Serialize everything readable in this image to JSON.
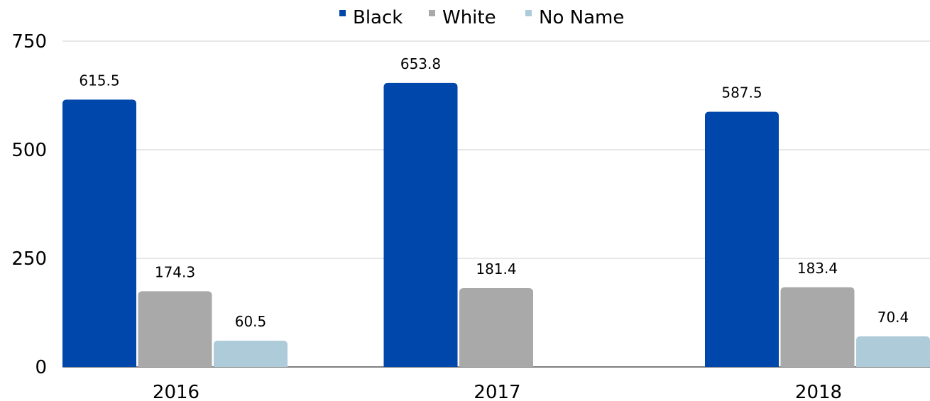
{
  "chart_data": {
    "type": "bar",
    "categories": [
      "2016",
      "2017",
      "2018"
    ],
    "series": [
      {
        "name": "Black",
        "color": "#0047AB",
        "values": [
          615.5,
          653.8,
          587.5
        ]
      },
      {
        "name": "White",
        "color": "#A9A9A9",
        "values": [
          174.3,
          181.4,
          183.4
        ]
      },
      {
        "name": "No Name",
        "color": "#AECBDA",
        "values": [
          60.5,
          null,
          70.4
        ]
      }
    ],
    "data_labels": [
      [
        "615.5",
        "174.3",
        "60.5"
      ],
      [
        "653.8",
        "181.4",
        ""
      ],
      [
        "587.5",
        "183.4",
        "70.4"
      ]
    ],
    "ylim": [
      0,
      750
    ],
    "yticks": [
      0,
      250,
      500,
      750
    ],
    "grid": true,
    "legend_position": "top-center"
  }
}
